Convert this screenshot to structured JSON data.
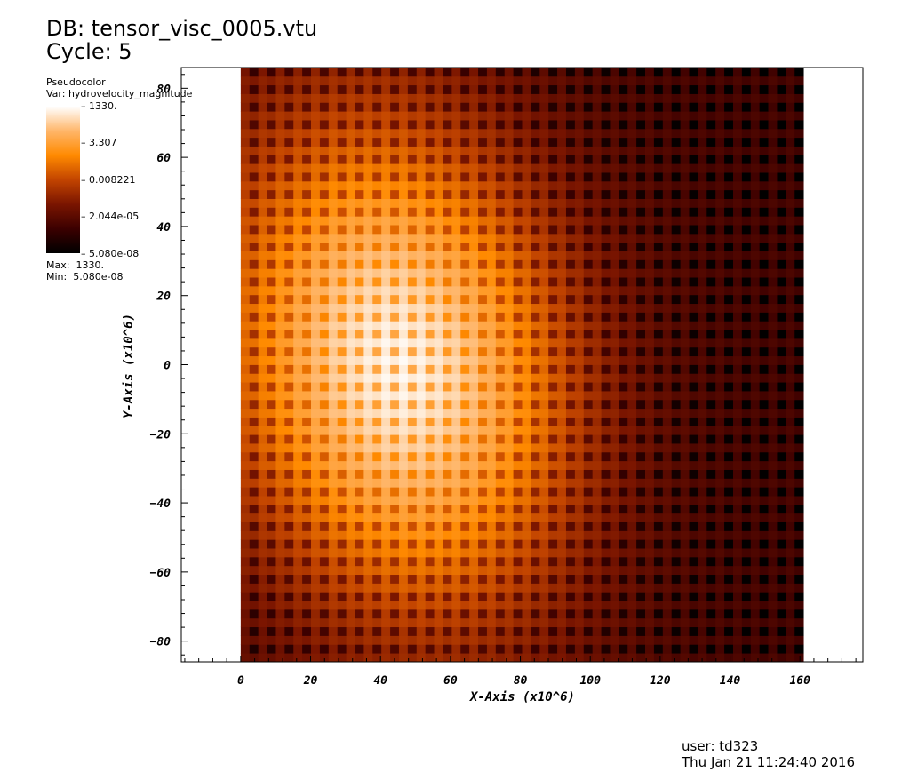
{
  "header": {
    "db": "DB: tensor_visc_0005.vtu",
    "cycle": "Cycle: 5"
  },
  "legend": {
    "plot_type": "Pseudocolor",
    "var": "Var: hydrovelocity_magnitude",
    "labels": [
      "1330.",
      "3.307",
      "0.008221",
      "2.044e-05",
      "5.080e-08"
    ],
    "max_label": "Max:",
    "max_value": "1330.",
    "min_label": "Min:",
    "min_value": "5.080e-08",
    "colormap": [
      "#000000",
      "#3b0000",
      "#7a1500",
      "#c24400",
      "#ff8a00",
      "#ffb66a",
      "#ffffff"
    ]
  },
  "footer": {
    "user": "user: td323",
    "timestamp": "Thu Jan 21 11:24:40 2016"
  },
  "chart_data": {
    "type": "heatmap",
    "xlabel": "X-Axis (x10^6)",
    "ylabel": "Y-Axis (x10^6)",
    "xlim": [
      -17,
      178
    ],
    "ylim": [
      -86,
      86
    ],
    "data_extent": {
      "x": [
        0,
        161
      ],
      "y": [
        -86,
        86
      ]
    },
    "xticks": [
      0,
      20,
      40,
      60,
      80,
      100,
      120,
      140,
      160
    ],
    "yticks": [
      -80,
      -60,
      -40,
      -20,
      0,
      20,
      40,
      60,
      80
    ],
    "xtick_labels": [
      "0",
      "20",
      "40",
      "60",
      "80",
      "100",
      "120",
      "140",
      "160"
    ],
    "ytick_labels": [
      "−80",
      "−60",
      "−40",
      "−20",
      "0",
      "20",
      "40",
      "60",
      "80"
    ],
    "grid": false,
    "field_description": "hydrovelocity magnitude, log color scale; peak along a ridge near x=45, y from -40 to 25; fades toward right edge and corners; checkerboard cell pattern",
    "value_range": [
      5.08e-08,
      1330
    ],
    "peak": {
      "x": 45,
      "y": -5,
      "value": 1330
    }
  }
}
